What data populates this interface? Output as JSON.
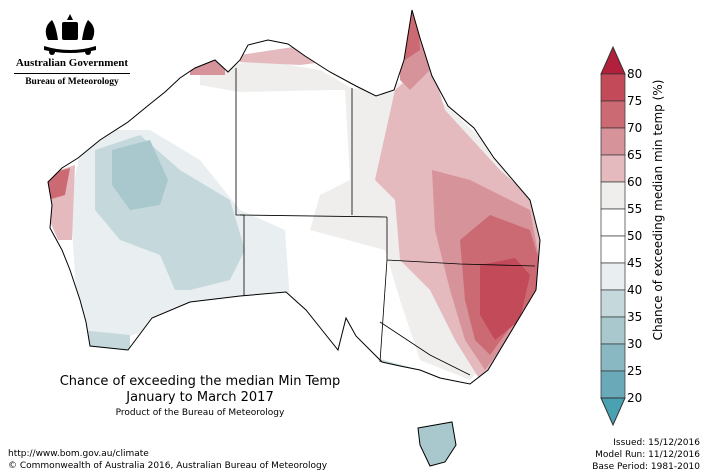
{
  "logo": {
    "government": "Australian Government",
    "bureau": "Bureau of Meteorology"
  },
  "title": {
    "line1": "Chance of exceeding the median Min Temp",
    "line2": "January to March 2017",
    "product": "Product of the Bureau of Meteorology"
  },
  "footer": {
    "url": "http://www.bom.gov.au/climate",
    "copyright": "© Commonwealth of Australia 2016, Australian Bureau of Meteorology"
  },
  "meta": {
    "issued": "Issued: 15/12/2016",
    "model_run": "Model Run: 11/12/2016",
    "base_period": "Base Period: 1981-2010"
  },
  "colorbar": {
    "label": "Chance of exceeding median min temp (%)",
    "ticks": [
      "80",
      "75",
      "70",
      "65",
      "60",
      "55",
      "50",
      "45",
      "40",
      "35",
      "30",
      "25",
      "20"
    ],
    "colors": [
      "#c34a58",
      "#cc6a74",
      "#d6939a",
      "#e4babe",
      "#efeeec",
      "#ffffff",
      "#ffffff",
      "#e9eff1",
      "#c5d9dd",
      "#a9c8cd",
      "#89b7c2",
      "#6aa9b8"
    ],
    "over_color": "#b3203c",
    "under_color": "#4aa1b1"
  }
}
